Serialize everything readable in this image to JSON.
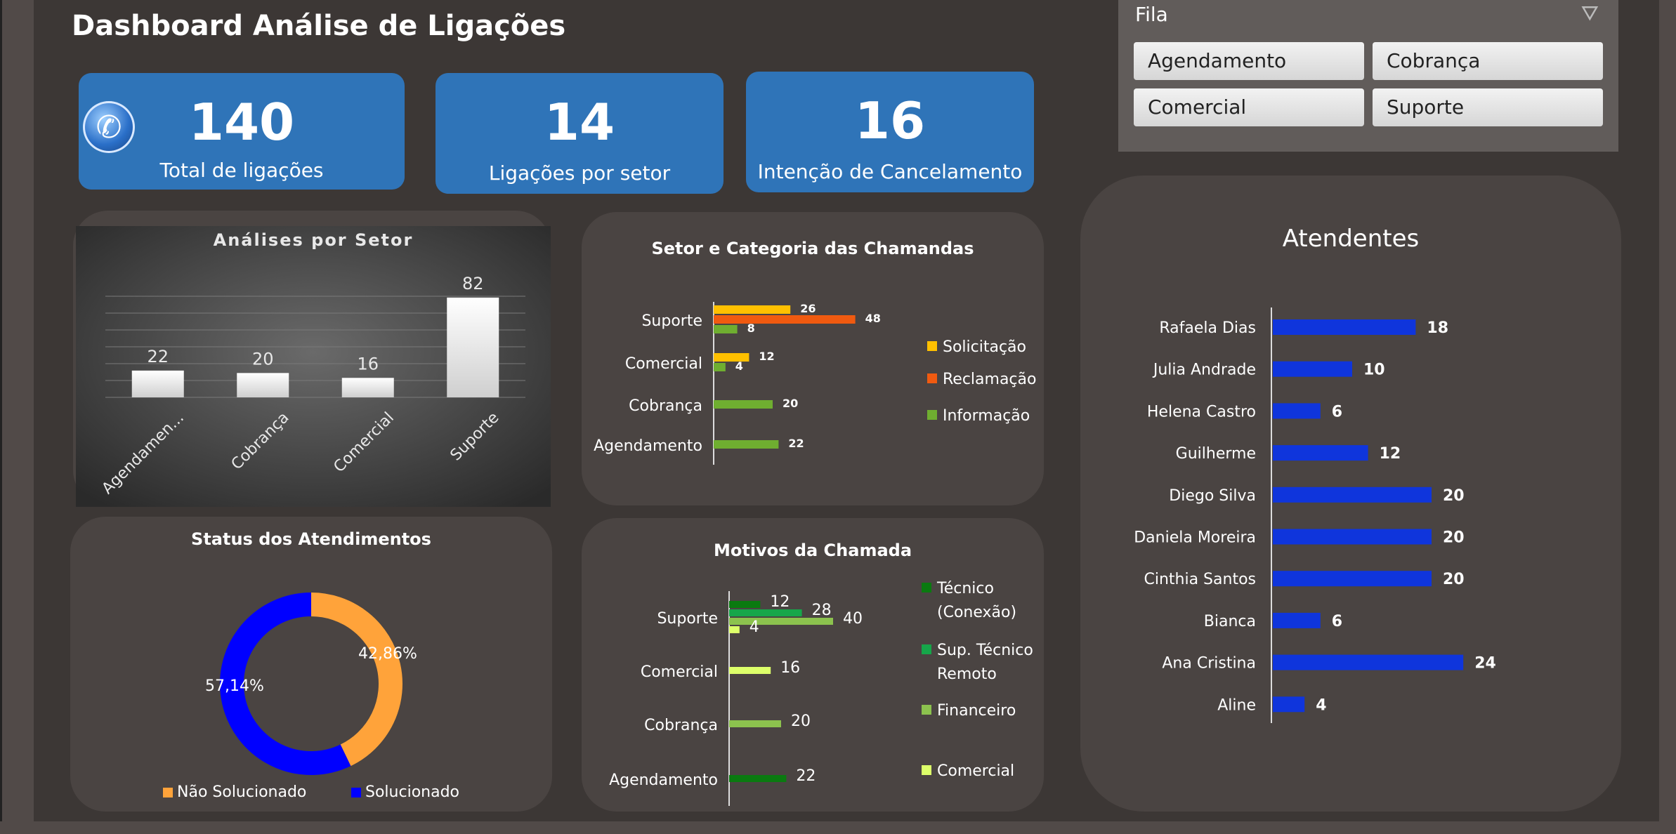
{
  "title": "Dashboard Análise de Ligações",
  "kpis": {
    "total": {
      "value": "140",
      "label": "Total de ligações"
    },
    "setor": {
      "value": "14",
      "label": "Ligações por setor"
    },
    "cancel": {
      "value": "16",
      "label": "Intenção de Cancelamento"
    }
  },
  "slicer": {
    "header": "Fila",
    "options": [
      "Agendamento",
      "Cobrança",
      "Comercial",
      "Suporte"
    ]
  },
  "colors": {
    "accent": "#2f74b8",
    "orange": "#ffa33a",
    "blue": "#0000ff",
    "bar_blue": "#0f35dc"
  },
  "chart_data": [
    {
      "type": "bar",
      "title": "Análises por Setor",
      "categories": [
        "Agendamen...",
        "Cobrança",
        "Comercial",
        "Suporte"
      ],
      "values": [
        22,
        20,
        16,
        82
      ],
      "ylim": [
        0,
        90
      ]
    },
    {
      "type": "bar",
      "title": "Setor e Categoria das Chamandas",
      "categories": [
        "Suporte",
        "Comercial",
        "Cobrança",
        "Agendamento"
      ],
      "series": [
        {
          "name": "Solicitação",
          "color": "#ffc000",
          "values": [
            26,
            12,
            null,
            null
          ]
        },
        {
          "name": "Reclamação",
          "color": "#f05a10",
          "values": [
            48,
            null,
            null,
            null
          ]
        },
        {
          "name": "Informação",
          "color": "#6fae30",
          "values": [
            8,
            4,
            20,
            22
          ]
        }
      ]
    },
    {
      "type": "pie",
      "title": "Status dos Atendimentos",
      "slices": [
        {
          "name": "Não Solucionado",
          "value": 42.86,
          "label": "42,86%",
          "color": "#ffa33a"
        },
        {
          "name": "Solucionado",
          "value": 57.14,
          "label": "57,14%",
          "color": "#0000ff"
        }
      ]
    },
    {
      "type": "bar",
      "title": "Motivos da Chamada",
      "categories": [
        "Suporte",
        "Comercial",
        "Cobrança",
        "Agendamento"
      ],
      "series": [
        {
          "name": "Técnico (Conexão)",
          "color": "#0a7a10",
          "values": [
            12,
            null,
            null,
            22
          ]
        },
        {
          "name": "Sup. Técnico Remoto",
          "color": "#16a64a",
          "values": [
            28,
            null,
            null,
            null
          ]
        },
        {
          "name": "Financeiro",
          "color": "#8cc24e",
          "values": [
            40,
            null,
            20,
            null
          ]
        },
        {
          "name": "Comercial",
          "color": "#ddff6a",
          "values": [
            4,
            16,
            null,
            null
          ]
        }
      ]
    },
    {
      "type": "bar",
      "title": "Atendentes",
      "categories": [
        "Rafaela Dias",
        "Julia Andrade",
        "Helena Castro",
        "Guilherme",
        "Diego Silva",
        "Daniela Moreira",
        "Cinthia Santos",
        "Bianca",
        "Ana Cristina",
        "Aline"
      ],
      "values": [
        18,
        10,
        6,
        12,
        20,
        20,
        20,
        6,
        24,
        4
      ]
    }
  ]
}
